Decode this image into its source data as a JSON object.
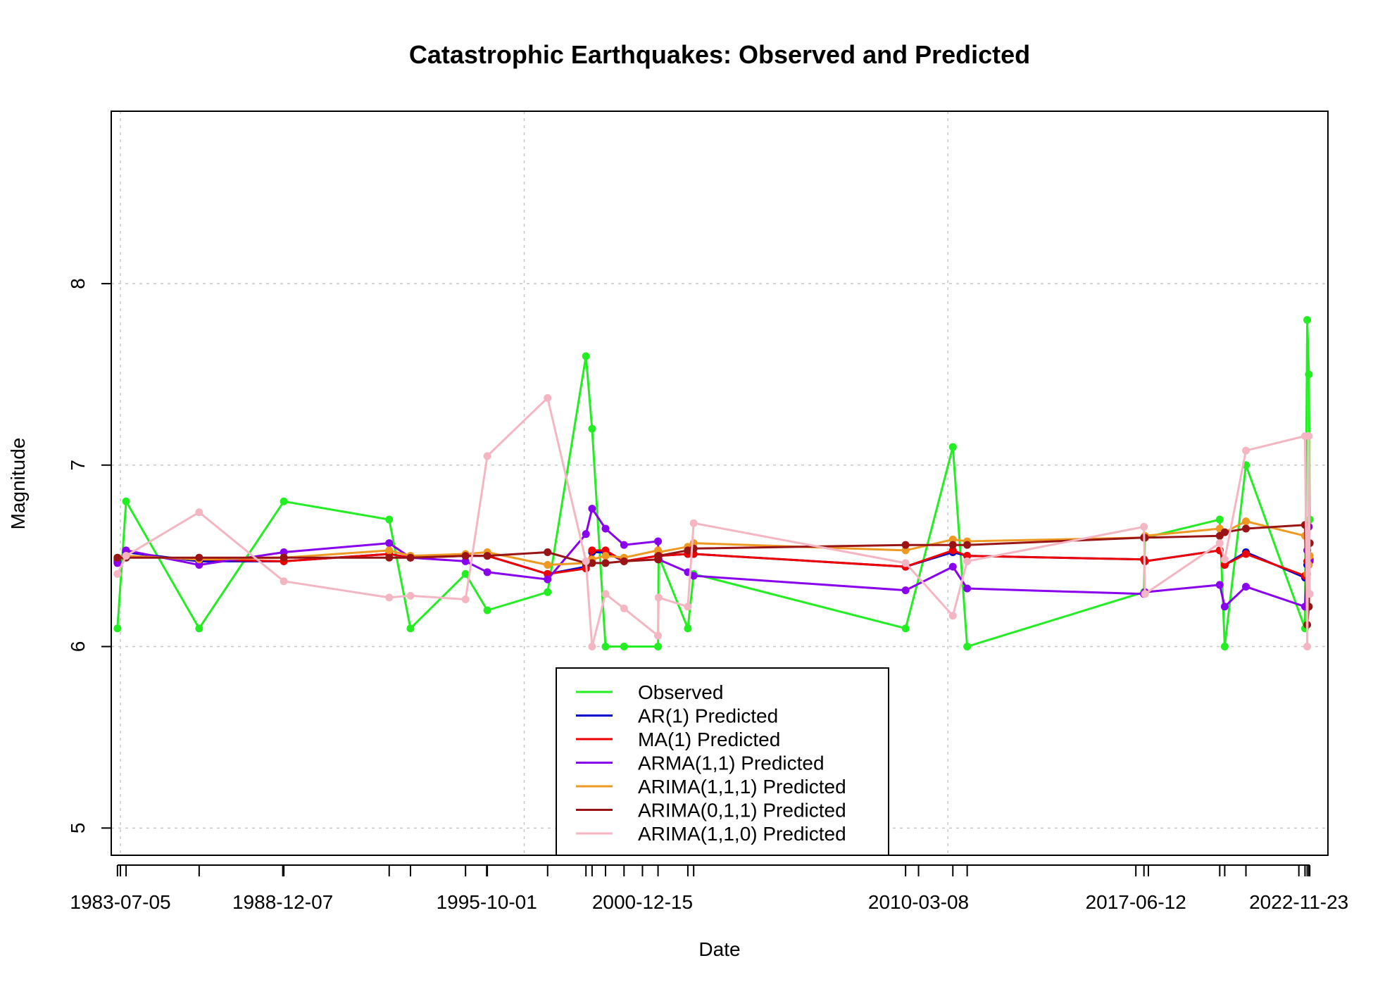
{
  "chart_data": {
    "type": "line",
    "title": "Catastrophic Earthquakes: Observed and Predicted",
    "xlabel": "Date",
    "ylabel": "Magnitude",
    "x_axis": {
      "type": "date",
      "range": [
        "1983-03-15",
        "2023-11-13"
      ]
    },
    "ylim": [
      4.85,
      8.95
    ],
    "y_ticks": [
      5,
      6,
      7,
      8
    ],
    "x_tick_labels": [
      "1983-07-05",
      "1988-12-07",
      "1995-10-01",
      "2000-12-15",
      "2010-03-08",
      "2017-06-12",
      "2022-11-23"
    ],
    "x_minor_ticks": [
      "1983-05-30",
      "1983-09-12",
      "1986-02-20",
      "1988-12-20",
      "1992-06-28",
      "1993-03-15",
      "1995-01-16",
      "1995-10-09",
      "1997-10-14",
      "1999-01-25",
      "1999-04-10",
      "1999-09-21",
      "2000-05-04",
      "2001-06-23",
      "2002-06-22",
      "2002-09-01",
      "2009-10-01",
      "2011-05-01",
      "2011-10-23",
      "2017-09-19",
      "2017-11-12",
      "2020-04-01",
      "2020-06-01",
      "2021-02-15",
      "2023-02-06",
      "2023-03-05",
      "2023-03-25",
      "2023-04-05"
    ],
    "grid": true,
    "grid_x": [
      "1983-07-05",
      "1997-01-01",
      "2011-03-01"
    ],
    "legend_position": "bottom-center",
    "series": [
      {
        "name": "Observed",
        "color": "#22EE22",
        "points": [
          [
            "1983-05-30",
            6.1
          ],
          [
            "1983-09-12",
            6.8
          ],
          [
            "1986-02-20",
            6.1
          ],
          [
            "1988-12-20",
            6.8
          ],
          [
            "1992-06-28",
            6.7
          ],
          [
            "1993-03-15",
            6.1
          ],
          [
            "1995-01-16",
            6.4
          ],
          [
            "1995-10-09",
            6.2
          ],
          [
            "1997-10-14",
            6.3
          ],
          [
            "1999-01-25",
            7.6
          ],
          [
            "1999-04-10",
            7.2
          ],
          [
            "1999-09-21",
            6.0
          ],
          [
            "2000-05-04",
            6.0
          ],
          [
            "2001-06-23",
            6.0
          ],
          [
            "2001-06-30",
            6.5
          ],
          [
            "2002-06-22",
            6.1
          ],
          [
            "2002-09-01",
            6.4
          ],
          [
            "2009-10-01",
            6.1
          ],
          [
            "2011-05-01",
            7.1
          ],
          [
            "2011-10-23",
            6.0
          ],
          [
            "2017-09-19",
            6.3
          ],
          [
            "2017-10-01",
            6.6
          ],
          [
            "2020-04-01",
            6.7
          ],
          [
            "2020-06-01",
            6.0
          ],
          [
            "2021-02-15",
            7.0
          ],
          [
            "2023-02-06",
            6.1
          ],
          [
            "2023-03-05",
            7.8
          ],
          [
            "2023-03-25",
            7.5
          ],
          [
            "2023-04-05",
            6.7
          ]
        ]
      },
      {
        "name": "AR(1) Predicted",
        "color": "#0000CC",
        "points": [
          [
            "1983-05-30",
            6.47
          ],
          [
            "1983-09-12",
            6.52
          ],
          [
            "1986-02-20",
            6.47
          ],
          [
            "1988-12-20",
            6.47
          ],
          [
            "1992-06-28",
            6.51
          ],
          [
            "1993-03-15",
            6.49
          ],
          [
            "1995-01-16",
            6.5
          ],
          [
            "1995-10-09",
            6.5
          ],
          [
            "1997-10-14",
            6.4
          ],
          [
            "1999-01-25",
            6.44
          ],
          [
            "1999-04-10",
            6.52
          ],
          [
            "1999-09-21",
            6.52
          ],
          [
            "2000-05-04",
            6.47
          ],
          [
            "2001-06-23",
            6.5
          ],
          [
            "2001-06-30",
            6.5
          ],
          [
            "2002-06-22",
            6.51
          ],
          [
            "2002-09-01",
            6.51
          ],
          [
            "2009-10-01",
            6.44
          ],
          [
            "2011-05-01",
            6.52
          ],
          [
            "2011-10-23",
            6.5
          ],
          [
            "2017-09-19",
            6.48
          ],
          [
            "2017-10-01",
            6.47
          ],
          [
            "2020-04-01",
            6.53
          ],
          [
            "2020-06-01",
            6.45
          ],
          [
            "2021-02-15",
            6.52
          ],
          [
            "2023-02-06",
            6.38
          ],
          [
            "2023-03-05",
            6.45
          ],
          [
            "2023-03-25",
            6.5
          ],
          [
            "2023-04-05",
            6.48
          ]
        ]
      },
      {
        "name": "MA(1) Predicted",
        "color": "#EE0000",
        "points": [
          [
            "1983-05-30",
            6.48
          ],
          [
            "1983-09-12",
            6.5
          ],
          [
            "1986-02-20",
            6.48
          ],
          [
            "1988-12-20",
            6.47
          ],
          [
            "1992-06-28",
            6.51
          ],
          [
            "1993-03-15",
            6.49
          ],
          [
            "1995-01-16",
            6.5
          ],
          [
            "1995-10-09",
            6.5
          ],
          [
            "1997-10-14",
            6.4
          ],
          [
            "1999-01-25",
            6.43
          ],
          [
            "1999-04-10",
            6.53
          ],
          [
            "1999-09-21",
            6.53
          ],
          [
            "2000-05-04",
            6.47
          ],
          [
            "2001-06-23",
            6.5
          ],
          [
            "2001-06-30",
            6.5
          ],
          [
            "2002-06-22",
            6.51
          ],
          [
            "2002-09-01",
            6.51
          ],
          [
            "2009-10-01",
            6.44
          ],
          [
            "2011-05-01",
            6.53
          ],
          [
            "2011-10-23",
            6.5
          ],
          [
            "2017-09-19",
            6.48
          ],
          [
            "2017-10-01",
            6.47
          ],
          [
            "2020-04-01",
            6.53
          ],
          [
            "2020-06-01",
            6.45
          ],
          [
            "2021-02-15",
            6.51
          ],
          [
            "2023-02-06",
            6.39
          ],
          [
            "2023-03-05",
            6.47
          ],
          [
            "2023-03-25",
            6.49
          ],
          [
            "2023-04-05",
            6.48
          ]
        ]
      },
      {
        "name": "ARMA(1,1) Predicted",
        "color": "#8800EE",
        "points": [
          [
            "1983-05-30",
            6.46
          ],
          [
            "1983-09-12",
            6.53
          ],
          [
            "1986-02-20",
            6.45
          ],
          [
            "1988-12-20",
            6.52
          ],
          [
            "1992-06-28",
            6.57
          ],
          [
            "1993-03-15",
            6.49
          ],
          [
            "1995-01-16",
            6.47
          ],
          [
            "1995-10-09",
            6.41
          ],
          [
            "1997-10-14",
            6.37
          ],
          [
            "1999-01-25",
            6.62
          ],
          [
            "1999-04-10",
            6.76
          ],
          [
            "1999-09-21",
            6.65
          ],
          [
            "2000-05-04",
            6.56
          ],
          [
            "2001-06-23",
            6.58
          ],
          [
            "2001-06-30",
            6.48
          ],
          [
            "2002-06-22",
            6.41
          ],
          [
            "2002-09-01",
            6.39
          ],
          [
            "2009-10-01",
            6.31
          ],
          [
            "2011-05-01",
            6.44
          ],
          [
            "2011-10-23",
            6.32
          ],
          [
            "2017-09-19",
            6.29
          ],
          [
            "2017-10-01",
            6.3
          ],
          [
            "2020-04-01",
            6.34
          ],
          [
            "2020-06-01",
            6.22
          ],
          [
            "2021-02-15",
            6.33
          ],
          [
            "2023-02-06",
            6.22
          ],
          [
            "2023-03-05",
            6.53
          ],
          [
            "2023-03-25",
            6.66
          ],
          [
            "2023-04-05",
            6.47
          ]
        ]
      },
      {
        "name": "ARIMA(1,1,1) Predicted",
        "color": "#EE9922",
        "points": [
          [
            "1983-05-30",
            6.49
          ],
          [
            "1983-09-12",
            6.5
          ],
          [
            "1986-02-20",
            6.48
          ],
          [
            "1988-12-20",
            6.49
          ],
          [
            "1992-06-28",
            6.53
          ],
          [
            "1993-03-15",
            6.5
          ],
          [
            "1995-01-16",
            6.51
          ],
          [
            "1995-10-09",
            6.52
          ],
          [
            "1997-10-14",
            6.45
          ],
          [
            "1999-01-25",
            6.46
          ],
          [
            "1999-04-10",
            6.48
          ],
          [
            "1999-09-21",
            6.5
          ],
          [
            "2000-05-04",
            6.49
          ],
          [
            "2001-06-23",
            6.53
          ],
          [
            "2001-06-30",
            6.52
          ],
          [
            "2002-06-22",
            6.55
          ],
          [
            "2002-09-01",
            6.57
          ],
          [
            "2009-10-01",
            6.53
          ],
          [
            "2011-05-01",
            6.59
          ],
          [
            "2011-10-23",
            6.58
          ],
          [
            "2017-09-19",
            6.6
          ],
          [
            "2017-10-01",
            6.61
          ],
          [
            "2020-04-01",
            6.65
          ],
          [
            "2020-06-01",
            6.63
          ],
          [
            "2021-02-15",
            6.69
          ],
          [
            "2023-02-06",
            6.61
          ],
          [
            "2023-03-05",
            6.4
          ],
          [
            "2023-03-25",
            6.45
          ],
          [
            "2023-04-05",
            6.5
          ]
        ]
      },
      {
        "name": "ARIMA(0,1,1) Predicted",
        "color": "#991515",
        "points": [
          [
            "1983-05-30",
            6.49
          ],
          [
            "1983-09-12",
            6.49
          ],
          [
            "1986-02-20",
            6.49
          ],
          [
            "1988-12-20",
            6.49
          ],
          [
            "1992-06-28",
            6.49
          ],
          [
            "1993-03-15",
            6.49
          ],
          [
            "1995-01-16",
            6.5
          ],
          [
            "1995-10-09",
            6.5
          ],
          [
            "1997-10-14",
            6.52
          ],
          [
            "1999-01-25",
            6.46
          ],
          [
            "1999-04-10",
            6.46
          ],
          [
            "1999-09-21",
            6.46
          ],
          [
            "2000-05-04",
            6.47
          ],
          [
            "2001-06-23",
            6.48
          ],
          [
            "2001-06-30",
            6.5
          ],
          [
            "2002-06-22",
            6.53
          ],
          [
            "2002-09-01",
            6.54
          ],
          [
            "2009-10-01",
            6.56
          ],
          [
            "2011-05-01",
            6.56
          ],
          [
            "2011-10-23",
            6.56
          ],
          [
            "2017-09-19",
            6.6
          ],
          [
            "2017-10-01",
            6.6
          ],
          [
            "2020-04-01",
            6.61
          ],
          [
            "2020-06-01",
            6.63
          ],
          [
            "2021-02-15",
            6.65
          ],
          [
            "2023-02-06",
            6.67
          ],
          [
            "2023-03-05",
            6.12
          ],
          [
            "2023-03-25",
            6.22
          ],
          [
            "2023-04-05",
            6.57
          ]
        ]
      },
      {
        "name": "ARIMA(1,1,0) Predicted",
        "color": "#F4B6C2",
        "points": [
          [
            "1983-05-30",
            6.4
          ],
          [
            "1983-09-12",
            6.5
          ],
          [
            "1986-02-20",
            6.74
          ],
          [
            "1988-12-20",
            6.36
          ],
          [
            "1992-06-28",
            6.27
          ],
          [
            "1993-03-15",
            6.28
          ],
          [
            "1995-01-16",
            6.26
          ],
          [
            "1995-10-09",
            7.05
          ],
          [
            "1997-10-14",
            7.37
          ],
          [
            "1999-01-25",
            6.47
          ],
          [
            "1999-04-10",
            6.0
          ],
          [
            "1999-09-21",
            6.29
          ],
          [
            "2000-05-04",
            6.21
          ],
          [
            "2001-06-23",
            6.06
          ],
          [
            "2001-06-30",
            6.27
          ],
          [
            "2002-06-22",
            6.22
          ],
          [
            "2002-09-01",
            6.68
          ],
          [
            "2009-10-01",
            6.46
          ],
          [
            "2011-05-01",
            6.17
          ],
          [
            "2011-10-23",
            6.47
          ],
          [
            "2017-09-19",
            6.66
          ],
          [
            "2017-10-01",
            6.29
          ],
          [
            "2020-04-01",
            6.57
          ],
          [
            "2020-06-01",
            6.48
          ],
          [
            "2021-02-15",
            7.08
          ],
          [
            "2023-02-06",
            7.16
          ],
          [
            "2023-03-05",
            6.0
          ],
          [
            "2023-03-25",
            7.16
          ],
          [
            "2023-04-05",
            6.29
          ]
        ]
      }
    ]
  }
}
